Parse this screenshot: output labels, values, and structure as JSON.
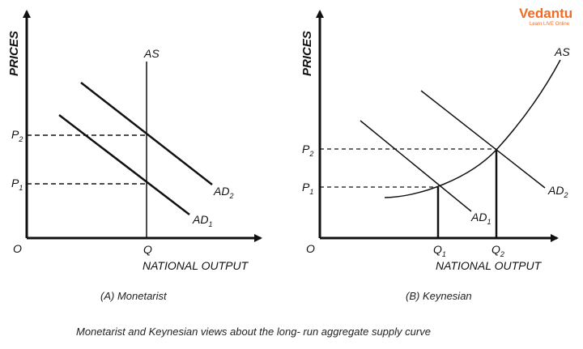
{
  "logo": {
    "name": "Vedantu",
    "tagline": "Learn LIVE Online",
    "color": "#f26b21"
  },
  "panel_a": {
    "y_axis_title": "PRICES",
    "x_axis_title": "NATIONAL OUTPUT",
    "origin": "O",
    "as_label": "AS",
    "q_label": "Q",
    "p1": {
      "main": "P",
      "sub": "1"
    },
    "p2": {
      "main": "P",
      "sub": "2"
    },
    "ad1": {
      "main": "AD",
      "sub": "1"
    },
    "ad2": {
      "main": "AD",
      "sub": "2"
    },
    "caption": "(A) Monetarist"
  },
  "panel_b": {
    "y_axis_title": "PRICES",
    "x_axis_title": "NATIONAL OUTPUT",
    "origin": "O",
    "as_label": "AS",
    "q1": {
      "main": "Q",
      "sub": "1"
    },
    "q2": {
      "main": "Q",
      "sub": "2"
    },
    "p1": {
      "main": "P",
      "sub": "1"
    },
    "p2": {
      "main": "P",
      "sub": "2"
    },
    "ad1": {
      "main": "AD",
      "sub": "1"
    },
    "ad2": {
      "main": "AD",
      "sub": "2"
    },
    "caption": "(B) Keynesian"
  },
  "footer_caption": "Monetarist and Keynesian views about the long- run aggregate supply curve"
}
